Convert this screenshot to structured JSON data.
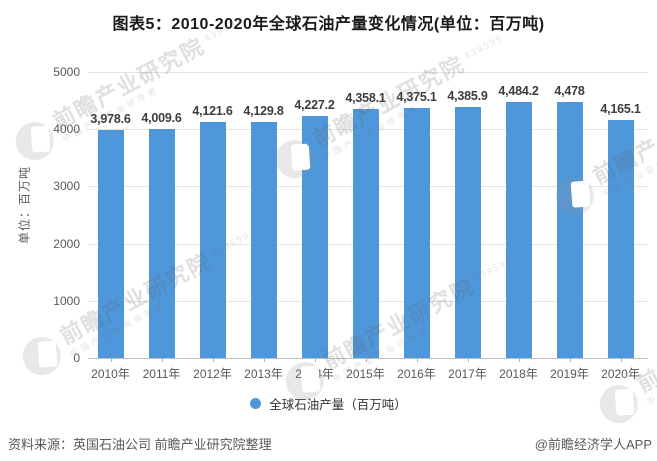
{
  "title": "图表5：2010-2020年全球石油产量变化情况(单位：百万吨)",
  "chart_data": {
    "type": "bar",
    "categories": [
      "2010年",
      "2011年",
      "2012年",
      "2013年",
      "2014年",
      "2015年",
      "2016年",
      "2017年",
      "2018年",
      "2019年",
      "2020年"
    ],
    "values": [
      3978.6,
      4009.6,
      4121.6,
      4129.8,
      4227.2,
      4358.1,
      4375.1,
      4385.9,
      4484.2,
      4478,
      4165.1
    ],
    "value_labels": [
      "3,978.6",
      "4,009.6",
      "4,121.6",
      "4,129.8",
      "4,227.2",
      "4,358.1",
      "4,375.1",
      "4,385.9",
      "4,484.2",
      "4,478",
      "4,165.1"
    ],
    "series_name": "全球石油产量（百万吨）",
    "title": "图表5：2010-2020年全球石油产量变化情况(单位：百万吨)",
    "xlabel": "",
    "ylabel": "单位：百万吨",
    "ylim": [
      0,
      5000
    ],
    "yticks": [
      0,
      1000,
      2000,
      3000,
      4000,
      5000
    ],
    "grid": true,
    "legend_position": "bottom",
    "bar_color": "#4E97DB"
  },
  "legend": {
    "label": "全球石油产量（百万吨）"
  },
  "footer": {
    "source": "资料来源：英国石油公司 前瞻产业研究院整理",
    "credit": "@前瞻经济学人APP"
  },
  "watermark": {
    "text": "前瞻产业研究院",
    "digits": "839599",
    "subtext": "中国产业咨询领导者"
  }
}
